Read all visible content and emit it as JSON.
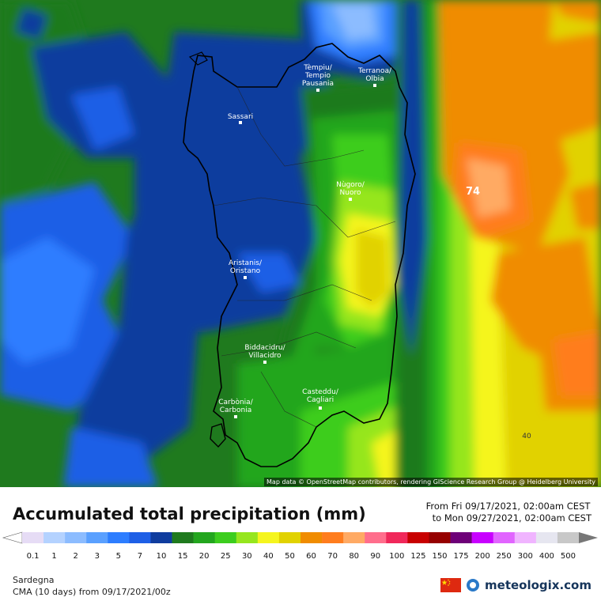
{
  "map": {
    "region": "Sardegna",
    "cities": [
      {
        "name": "Tèmpiu/",
        "name2": "Tempio",
        "name3": "Pausania"
      },
      {
        "name": "Terranoa/",
        "name2": "Olbia"
      },
      {
        "name": "Sassari"
      },
      {
        "name": "Nùgoro/",
        "name2": "Nuoro"
      },
      {
        "name": "Aristanis/",
        "name2": "Oristano"
      },
      {
        "name": "Biddacidru/",
        "name2": "Villacidro"
      },
      {
        "name": "Casteddu/",
        "name2": "Cagliari"
      },
      {
        "name": "Carbònia/",
        "name2": "Carbonia"
      }
    ],
    "max_value_label": "74",
    "contour_label": "40",
    "attribution": "Map data © OpenStreetMap contributors, rendering GIScience Research Group @ Heidelberg University"
  },
  "legend": {
    "title": "Accumulated total precipitation (mm)",
    "from_label": "From Fri 09/17/2021, 02:00am CEST",
    "to_label": "to Mon 09/27/2021, 02:00am CEST",
    "values": [
      "0.1",
      "1",
      "2",
      "3",
      "5",
      "7",
      "10",
      "15",
      "20",
      "25",
      "30",
      "40",
      "50",
      "60",
      "70",
      "80",
      "90",
      "100",
      "125",
      "150",
      "175",
      "200",
      "250",
      "300",
      "400",
      "500"
    ],
    "colors": [
      "#e6dcf5",
      "#b4d2ff",
      "#8cbcff",
      "#5aa0ff",
      "#2d7dff",
      "#1e5fe6",
      "#0f3c9e",
      "#1f7a1e",
      "#23a61e",
      "#3ccd1e",
      "#96e61e",
      "#f5f51e",
      "#e1d200",
      "#f08c00",
      "#ff7d1e",
      "#ffaa64",
      "#ff6e8c",
      "#f0285a",
      "#c80000",
      "#960000",
      "#6e0078",
      "#c800ff",
      "#e164ff",
      "#f0b4ff",
      "#e6e6f0",
      "#c8c8c8"
    ]
  },
  "footer": {
    "region_label": "Sardegna",
    "model_label": "CMA (10 days) from 09/17/2021/00z",
    "brand": "meteologix.com"
  }
}
